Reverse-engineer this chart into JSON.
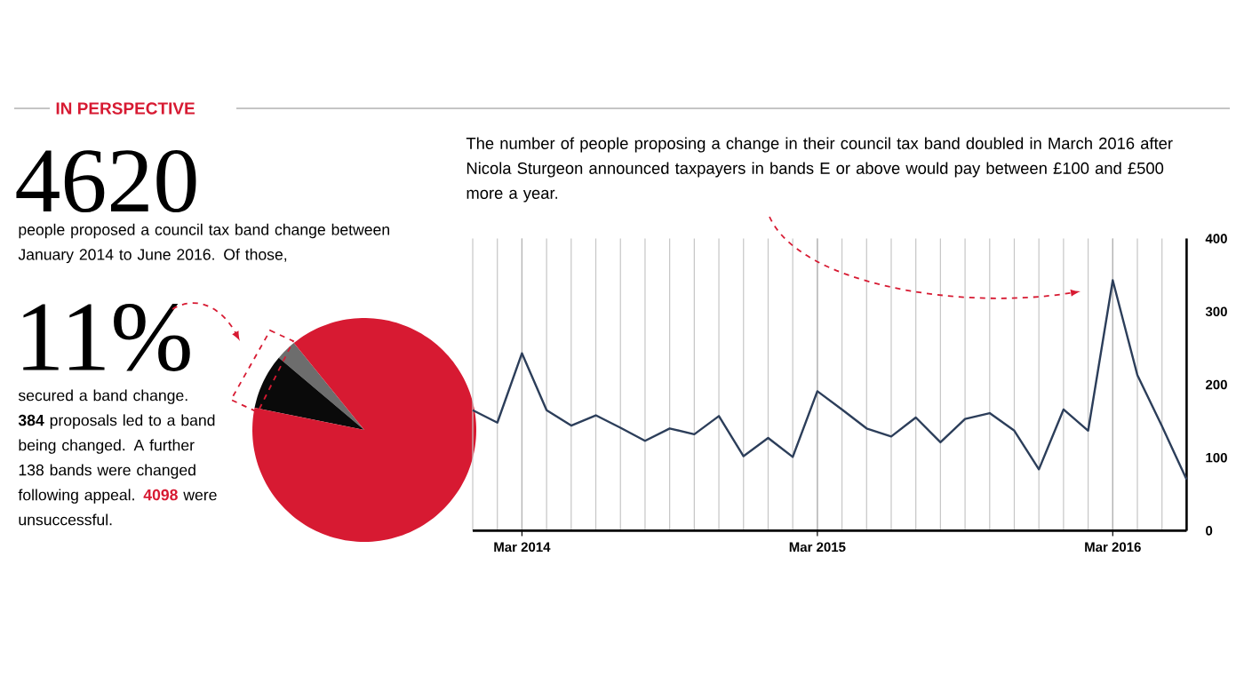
{
  "chart_data": [
    {
      "type": "pie",
      "title": "IN PERSPECTIVE",
      "categories": [
        null,
        null,
        null
      ],
      "values": [
        3,
        8,
        89
      ],
      "colors": [
        "#6d6d6d",
        "#0a0a0a",
        "#d71a32"
      ],
      "annotations": [
        "4620",
        "people proposed a council tax band change between January 2014 to June 2016. Of those,",
        "11%",
        "secured a band change. **384** proposals led to a band being changed. A further 138 bands were changed following appeal.",
        "4098",
        "were unsuccessful."
      ]
    },
    {
      "type": "line",
      "color": "#2c3e5a",
      "x": [
        "2014-01",
        "2014-02",
        "2014-03",
        "2014-04",
        "2014-05",
        "2014-06",
        "2014-07",
        "2014-08",
        "2014-09",
        "2014-10",
        "2014-11",
        "2014-12",
        "2015-01",
        "2015-02",
        "2015-03",
        "2015-04",
        "2015-05",
        "2015-06",
        "2015-07",
        "2015-08",
        "2015-09",
        "2015-10",
        "2015-11",
        "2015-12",
        "2016-01",
        "2016-02",
        "2016-03",
        "2016-04",
        "2016-05",
        "2016-06"
      ],
      "values": [
        165,
        148,
        243,
        165,
        144,
        158,
        141,
        123,
        140,
        132,
        157,
        102,
        127,
        101,
        191,
        166,
        140,
        129,
        155,
        121,
        153,
        161,
        137,
        84,
        166,
        137,
        343,
        213,
        143,
        70
      ],
      "xlim": [
        "2014-01",
        "2016-06"
      ],
      "xticks": [
        {
          "value": "2014-03",
          "label": "Mar 2014"
        },
        {
          "value": "2015-03",
          "label": "Mar 2015"
        },
        {
          "value": "2016-03",
          "label": "Mar 2016"
        }
      ],
      "ylim": [
        0,
        400
      ],
      "yticks": [
        0,
        100,
        200,
        300,
        400
      ],
      "grid": "x",
      "annotations": [
        "The number of people proposing a change in their council tax band doubled in March 2016 after Nicola Sturgeon announced taxpayers in bands E or above would pay between £100 and £500 more a year."
      ]
    }
  ]
}
